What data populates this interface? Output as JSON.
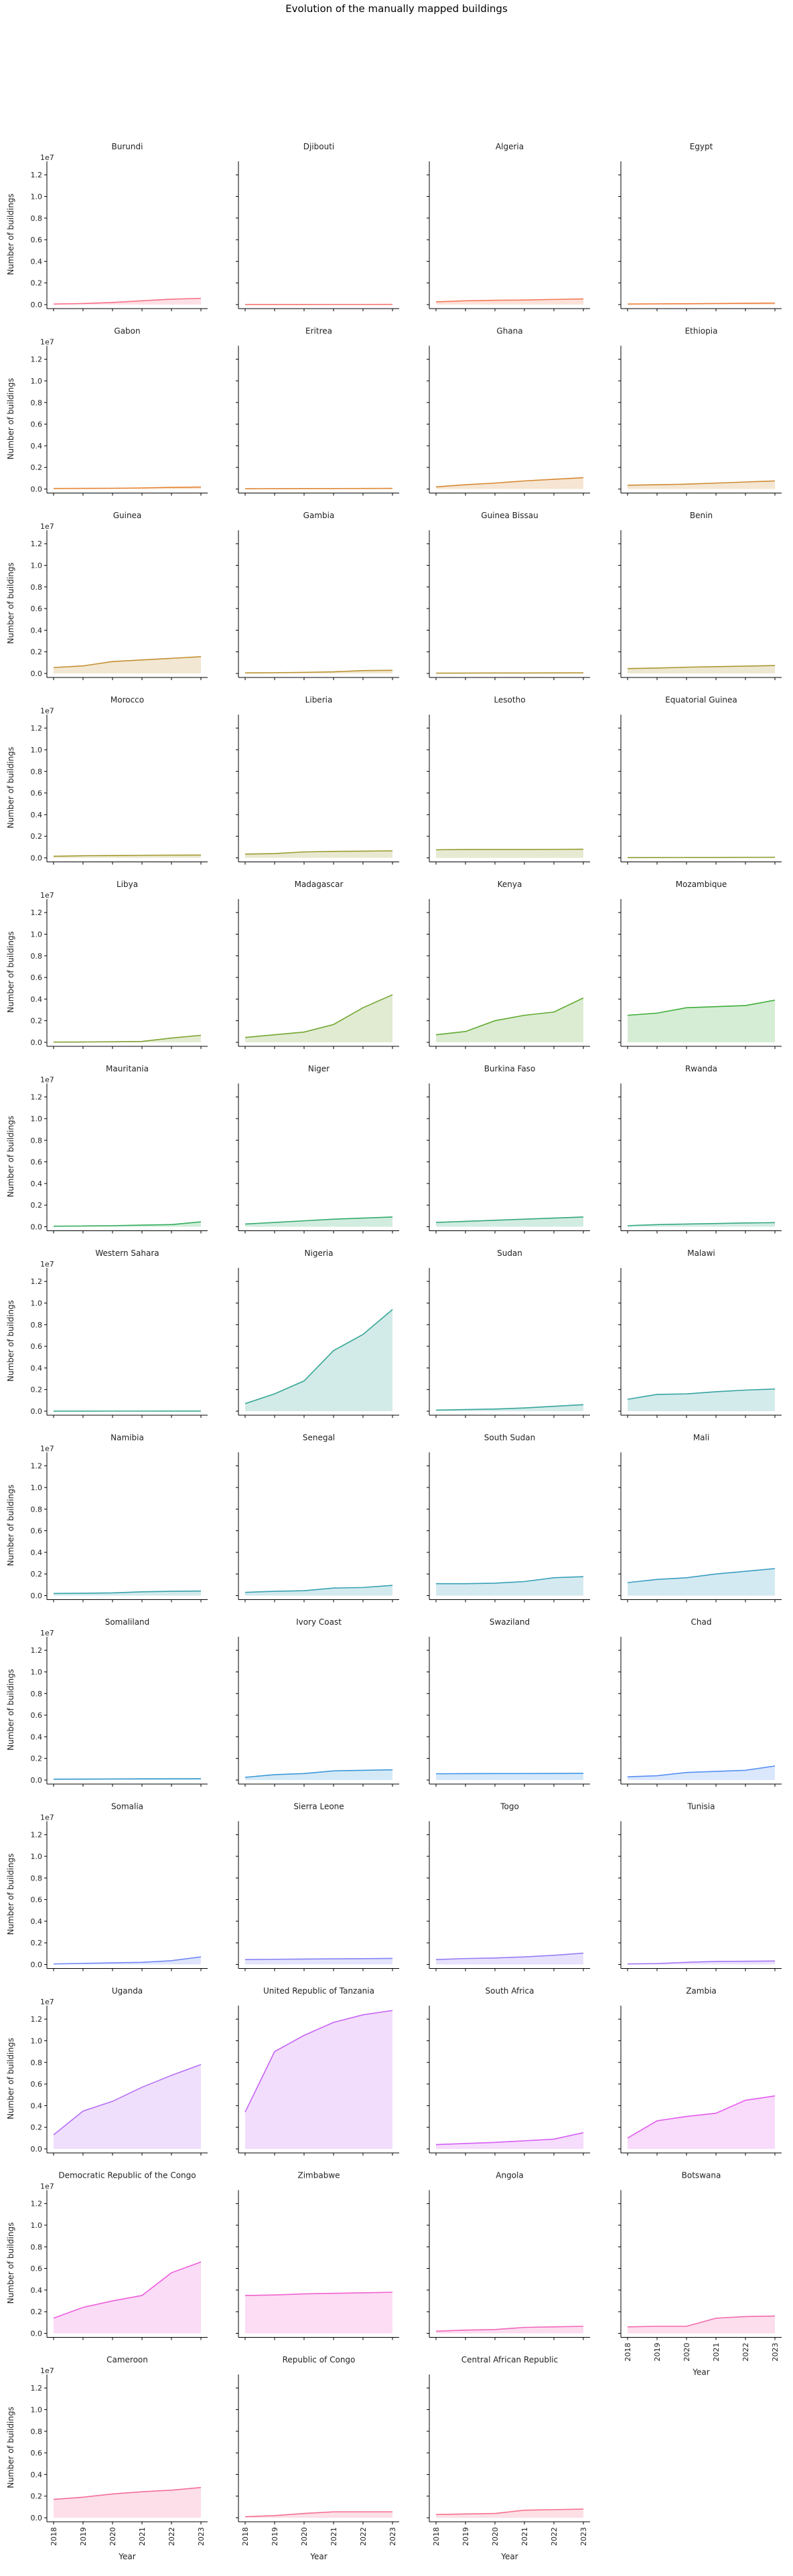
{
  "chart_data": {
    "type": "area",
    "title": "Evolution of the manually mapped buildings",
    "xlabel": "Year",
    "ylabel": "Number of buildings",
    "y_offset_text": "1e7",
    "ylim": [
      0,
      13000000
    ],
    "y_ticks": [
      0,
      2000000,
      4000000,
      6000000,
      8000000,
      10000000,
      12000000
    ],
    "y_tick_labels": [
      "0.0",
      "0.2",
      "0.4",
      "0.6",
      "0.8",
      "1.0",
      "1.2"
    ],
    "x": [
      "2018",
      "2019",
      "2020",
      "2021",
      "2022",
      "2023"
    ],
    "grid": false,
    "legend": "none",
    "series": [
      {
        "name": "Burundi",
        "color": "#f77189",
        "values": [
          50000,
          100000,
          200000,
          350000,
          500000,
          580000
        ]
      },
      {
        "name": "Djibouti",
        "color": "#f7746f",
        "values": [
          10000,
          12000,
          14000,
          15000,
          16000,
          17000
        ]
      },
      {
        "name": "Algeria",
        "color": "#f47a58",
        "values": [
          250000,
          350000,
          400000,
          420000,
          480000,
          520000
        ]
      },
      {
        "name": "Egypt",
        "color": "#ee7f3c",
        "values": [
          50000,
          70000,
          80000,
          100000,
          120000,
          140000
        ]
      },
      {
        "name": "Gabon",
        "color": "#e68332",
        "values": [
          50000,
          60000,
          70000,
          100000,
          150000,
          180000
        ]
      },
      {
        "name": "Eritrea",
        "color": "#df8632",
        "values": [
          30000,
          35000,
          40000,
          45000,
          50000,
          55000
        ]
      },
      {
        "name": "Ghana",
        "color": "#d68932",
        "values": [
          200000,
          400000,
          550000,
          750000,
          900000,
          1050000
        ]
      },
      {
        "name": "Ethiopia",
        "color": "#cd8c32",
        "values": [
          350000,
          400000,
          450000,
          550000,
          650000,
          750000
        ]
      },
      {
        "name": "Guinea",
        "color": "#c49032",
        "values": [
          550000,
          700000,
          1100000,
          1250000,
          1400000,
          1550000
        ]
      },
      {
        "name": "Gambia",
        "color": "#bc9331",
        "values": [
          50000,
          70000,
          100000,
          150000,
          270000,
          290000
        ]
      },
      {
        "name": "Guinea Bissau",
        "color": "#b49531",
        "values": [
          30000,
          35000,
          40000,
          45000,
          50000,
          55000
        ]
      },
      {
        "name": "Benin",
        "color": "#ac9731",
        "values": [
          450000,
          500000,
          580000,
          630000,
          680000,
          730000
        ]
      },
      {
        "name": "Morocco",
        "color": "#a49a31",
        "values": [
          150000,
          200000,
          220000,
          240000,
          250000,
          260000
        ]
      },
      {
        "name": "Liberia",
        "color": "#9c9c31",
        "values": [
          350000,
          400000,
          550000,
          600000,
          620000,
          650000
        ]
      },
      {
        "name": "Lesotho",
        "color": "#939e31",
        "values": [
          750000,
          780000,
          780000,
          780000,
          790000,
          800000
        ]
      },
      {
        "name": "Equatorial Guinea",
        "color": "#8aa131",
        "values": [
          30000,
          35000,
          40000,
          45000,
          50000,
          55000
        ]
      },
      {
        "name": "Libya",
        "color": "#7fa331",
        "values": [
          20000,
          30000,
          50000,
          80000,
          400000,
          650000
        ]
      },
      {
        "name": "Madagascar",
        "color": "#72a631",
        "values": [
          450000,
          700000,
          950000,
          1650000,
          3200000,
          4400000
        ]
      },
      {
        "name": "Kenya",
        "color": "#5faa31",
        "values": [
          700000,
          1000000,
          2000000,
          2500000,
          2800000,
          4100000
        ]
      },
      {
        "name": "Mozambique",
        "color": "#3fad3a",
        "values": [
          2500000,
          2700000,
          3200000,
          3300000,
          3400000,
          3900000
        ]
      },
      {
        "name": "Mauritania",
        "color": "#33ac5d",
        "values": [
          50000,
          70000,
          100000,
          150000,
          200000,
          450000
        ]
      },
      {
        "name": "Niger",
        "color": "#33ab6d",
        "values": [
          250000,
          400000,
          550000,
          700000,
          800000,
          900000
        ]
      },
      {
        "name": "Burkina Faso",
        "color": "#34a979",
        "values": [
          400000,
          500000,
          600000,
          700000,
          800000,
          900000
        ]
      },
      {
        "name": "Rwanda",
        "color": "#35a883",
        "values": [
          100000,
          200000,
          250000,
          300000,
          350000,
          380000
        ]
      },
      {
        "name": "Western Sahara",
        "color": "#35a78c",
        "values": [
          5000,
          6000,
          7000,
          8000,
          9000,
          10000
        ]
      },
      {
        "name": "Nigeria",
        "color": "#36a694",
        "values": [
          700000,
          1600000,
          2800000,
          5600000,
          7100000,
          9400000
        ]
      },
      {
        "name": "Sudan",
        "color": "#36a59b",
        "values": [
          100000,
          150000,
          200000,
          300000,
          450000,
          600000
        ]
      },
      {
        "name": "Malawi",
        "color": "#37a4a2",
        "values": [
          1100000,
          1550000,
          1600000,
          1800000,
          1950000,
          2050000
        ]
      },
      {
        "name": "Namibia",
        "color": "#37a3aa",
        "values": [
          200000,
          220000,
          250000,
          350000,
          400000,
          420000
        ]
      },
      {
        "name": "Senegal",
        "color": "#38a2b1",
        "values": [
          300000,
          400000,
          450000,
          700000,
          750000,
          950000
        ]
      },
      {
        "name": "South Sudan",
        "color": "#39a0b9",
        "values": [
          1100000,
          1100000,
          1150000,
          1300000,
          1650000,
          1750000
        ]
      },
      {
        "name": "Mali",
        "color": "#3a9ec2",
        "values": [
          1200000,
          1500000,
          1650000,
          2000000,
          2250000,
          2500000
        ]
      },
      {
        "name": "Somaliland",
        "color": "#3b9ccc",
        "values": [
          80000,
          90000,
          100000,
          110000,
          120000,
          130000
        ]
      },
      {
        "name": "Ivory Coast",
        "color": "#3d99d8",
        "values": [
          250000,
          500000,
          600000,
          850000,
          900000,
          950000
        ]
      },
      {
        "name": "Swaziland",
        "color": "#4196e8",
        "values": [
          580000,
          590000,
          600000,
          600000,
          610000,
          620000
        ]
      },
      {
        "name": "Chad",
        "color": "#5790f3",
        "values": [
          300000,
          400000,
          700000,
          800000,
          900000,
          1300000
        ]
      },
      {
        "name": "Somalia",
        "color": "#7189f4",
        "values": [
          50000,
          100000,
          150000,
          200000,
          350000,
          700000
        ]
      },
      {
        "name": "Sierra Leone",
        "color": "#8683f4",
        "values": [
          450000,
          480000,
          500000,
          520000,
          540000,
          560000
        ]
      },
      {
        "name": "Togo",
        "color": "#967df4",
        "values": [
          450000,
          550000,
          600000,
          700000,
          850000,
          1050000
        ]
      },
      {
        "name": "Tunisia",
        "color": "#a676f4",
        "values": [
          50000,
          80000,
          200000,
          280000,
          300000,
          320000
        ]
      },
      {
        "name": "Uganda",
        "color": "#b66ff4",
        "values": [
          1300000,
          3500000,
          4400000,
          5700000,
          6800000,
          7800000
        ]
      },
      {
        "name": "United Republic of Tanzania",
        "color": "#c766f4",
        "values": [
          3400000,
          9000000,
          10500000,
          11700000,
          12400000,
          12800000
        ]
      },
      {
        "name": "South Africa",
        "color": "#d55ef4",
        "values": [
          400000,
          500000,
          600000,
          750000,
          900000,
          1500000
        ]
      },
      {
        "name": "Zambia",
        "color": "#e35bef",
        "values": [
          1000000,
          2600000,
          3000000,
          3300000,
          4500000,
          4900000
        ]
      },
      {
        "name": "Democratic Republic of the Congo",
        "color": "#ed5edc",
        "values": [
          1400000,
          2400000,
          3000000,
          3500000,
          5600000,
          6600000
        ]
      },
      {
        "name": "Zimbabwe",
        "color": "#f062cc",
        "values": [
          3500000,
          3550000,
          3650000,
          3700000,
          3750000,
          3800000
        ]
      },
      {
        "name": "Angola",
        "color": "#f266bc",
        "values": [
          200000,
          300000,
          350000,
          550000,
          600000,
          650000
        ]
      },
      {
        "name": "Botswana",
        "color": "#f36aad",
        "values": [
          600000,
          650000,
          650000,
          1400000,
          1550000,
          1600000
        ]
      },
      {
        "name": "Cameroon",
        "color": "#f46c9e",
        "values": [
          1700000,
          1900000,
          2200000,
          2400000,
          2550000,
          2800000
        ]
      },
      {
        "name": "Republic of Congo",
        "color": "#f56e93",
        "values": [
          100000,
          200000,
          400000,
          550000,
          550000,
          550000
        ]
      },
      {
        "name": "Central African Republic",
        "color": "#f7708c",
        "values": [
          300000,
          350000,
          400000,
          700000,
          750000,
          800000
        ]
      }
    ]
  }
}
